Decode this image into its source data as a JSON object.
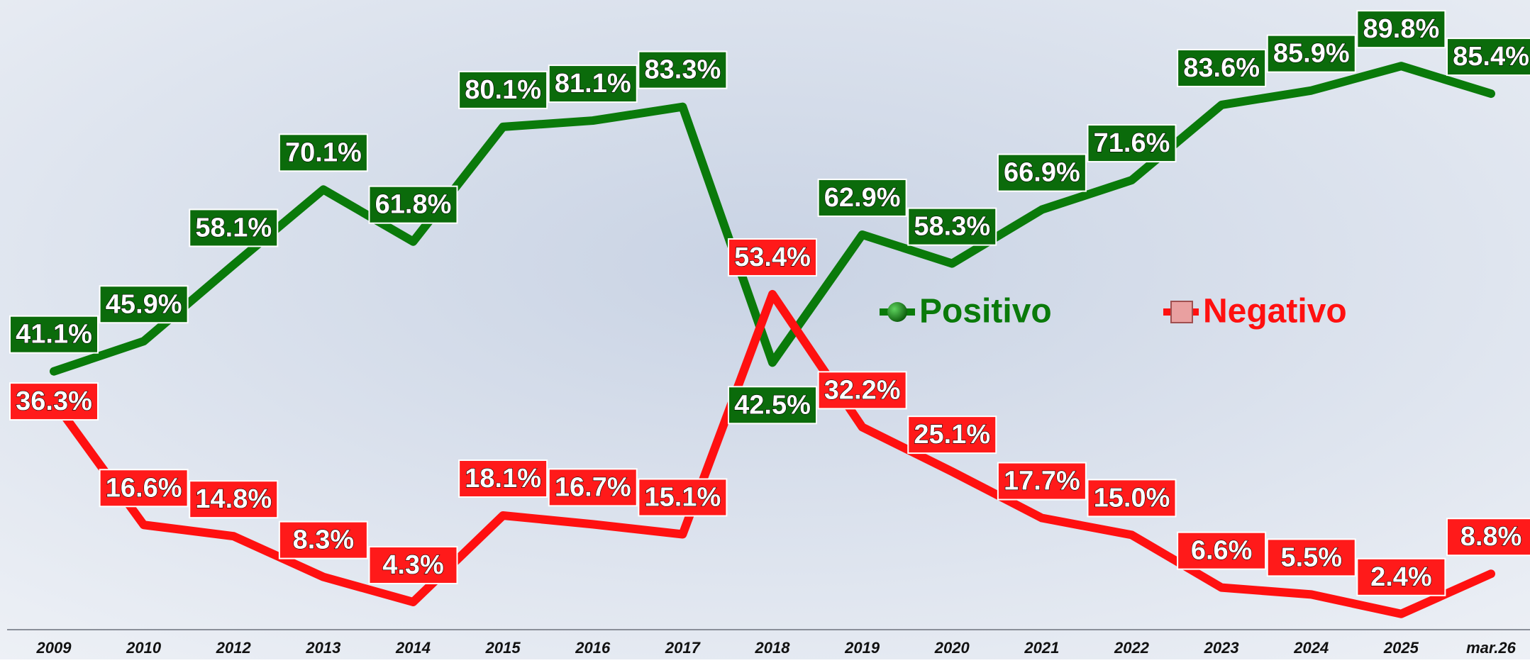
{
  "chart_data": {
    "type": "line",
    "categories": [
      "2009",
      "2010",
      "2012",
      "2013",
      "2014",
      "2015",
      "2016",
      "2017",
      "2018",
      "2019",
      "2020",
      "2021",
      "2022",
      "2023",
      "2024",
      "2025",
      "mar.26"
    ],
    "series": [
      {
        "name": "Positivo",
        "color": "#0a7a0a",
        "values": [
          41.1,
          45.9,
          58.1,
          70.1,
          61.8,
          80.1,
          81.1,
          83.3,
          42.5,
          62.9,
          58.3,
          66.9,
          71.6,
          83.6,
          85.9,
          89.8,
          85.4
        ],
        "value_labels": [
          "41.1%",
          "45.9%",
          "58.1%",
          "70.1%",
          "61.8%",
          "80.1%",
          "81.1%",
          "83.3%",
          "42.5%",
          "62.9%",
          "58.3%",
          "66.9%",
          "71.6%",
          "83.6%",
          "85.9%",
          "89.8%",
          "85.4%"
        ]
      },
      {
        "name": "Negativo",
        "color": "#ff1010",
        "values": [
          36.3,
          16.6,
          14.8,
          8.3,
          4.3,
          18.1,
          16.7,
          15.1,
          53.4,
          32.2,
          25.1,
          17.7,
          15.0,
          6.6,
          5.5,
          2.4,
          8.8
        ],
        "value_labels": [
          "36.3%",
          "16.6%",
          "14.8%",
          "8.3%",
          "4.3%",
          "18.1%",
          "16.7%",
          "15.1%",
          "53.4%",
          "32.2%",
          "25.1%",
          "17.7%",
          "15.0%",
          "6.6%",
          "5.5%",
          "2.4%",
          "8.8%"
        ]
      }
    ],
    "ylim": [
      0,
      100
    ]
  }
}
